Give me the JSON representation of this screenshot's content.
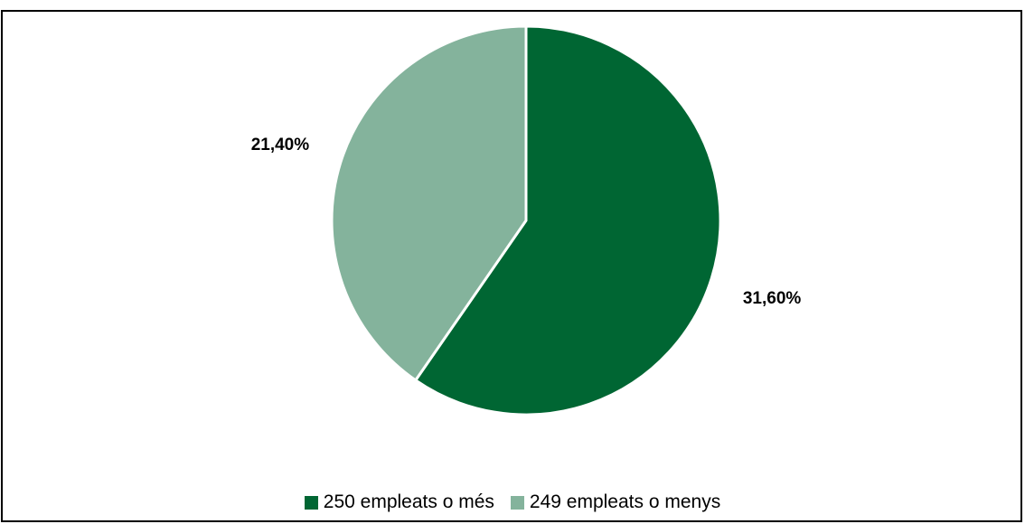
{
  "chart_data": {
    "type": "pie",
    "categories": [
      "250 empleats o més",
      "249 empleats o menys"
    ],
    "values": [
      31.6,
      21.4
    ],
    "data_labels": [
      "31,60%",
      "21,40%"
    ],
    "colors": [
      "#006633",
      "#84B39C"
    ],
    "legend_position": "bottom"
  }
}
